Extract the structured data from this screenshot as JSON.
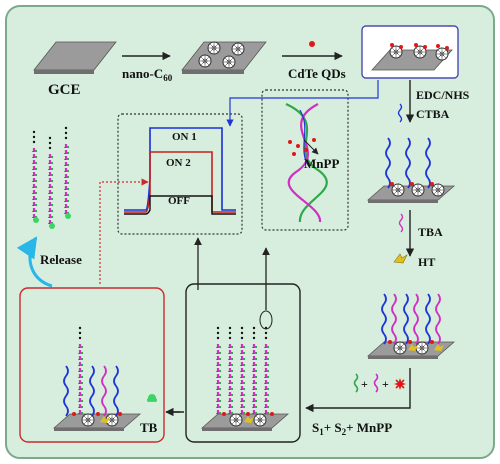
{
  "labels": {
    "gce": "GCE",
    "nano_c60": "nano-C",
    "nano_c60_sub": "60",
    "cdte": "CdTe QDs",
    "edc": "EDC/NHS",
    "ctba": "CTBA",
    "tba": "TBA",
    "ht": "HT",
    "on1": "ON 1",
    "on2": "ON 2",
    "off": "OFF",
    "mnpp": "MnPP",
    "release": "Release",
    "tb": "TB",
    "s_label_s": "S",
    "s_label_1": "1",
    "s_label_plus1": "+ S",
    "s_label_2": "2",
    "s_label_plus2": "+ MnPP",
    "plus": "+"
  },
  "colors": {
    "background": "#d7eede",
    "border": "#7ca98a",
    "electrode": "#9b9b9b",
    "dna_blue": "#2036d6",
    "dna_magenta": "#d02fc2",
    "dna_green": "#2ea84a",
    "box_red": "#cc2a2a",
    "mnpp_red": "#e01818",
    "ht_yellow": "#e0c020",
    "release_arrow": "#29b6e8",
    "on1_line": "#1a2ed8",
    "on2_line": "#c8201e",
    "off_line": "#111111"
  }
}
